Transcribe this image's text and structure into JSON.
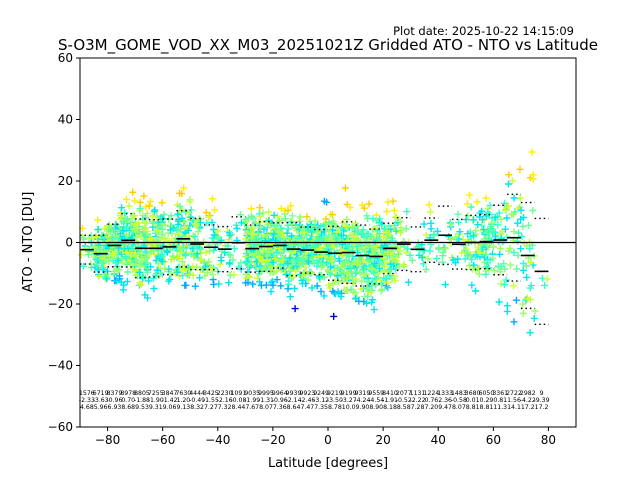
{
  "plot_date": "Plot date: 2025-10-22 14:15:09",
  "chart_data": {
    "type": "scatter",
    "title": "S-O3M_GOME_VOD_XX_M03_20251021Z Gridded ATO - NTO vs Latitude",
    "xlabel": "Latitude [degrees]",
    "ylabel": "ATO - NTO [DU]",
    "xlim": [
      -90,
      90
    ],
    "ylim": [
      -60,
      60
    ],
    "xticks": [
      -80,
      -60,
      -40,
      -20,
      0,
      20,
      40,
      60,
      80
    ],
    "yticks": [
      -60,
      -40,
      -20,
      0,
      20,
      40,
      60
    ],
    "zero_line": 0,
    "marker": "+",
    "point_colors": [
      "#0000dd",
      "#00aaff",
      "#00e5ee",
      "#33ffcc",
      "#66ff99",
      "#99ff66",
      "#ccff33",
      "#ffee00",
      "#ffcc00",
      "#ff9900"
    ],
    "bins": [
      {
        "lat": -87.5,
        "count": 1576,
        "mean": -2.33,
        "std": 4.68
      },
      {
        "lat": -82.5,
        "count": 6719,
        "mean": -3.63,
        "std": 5.96
      },
      {
        "lat": -77.5,
        "count": 8379,
        "mean": -0.96,
        "std": 6.93
      },
      {
        "lat": -72.5,
        "count": 8978,
        "mean": 0.7,
        "std": 8.68
      },
      {
        "lat": -67.5,
        "count": 8805,
        "mean": -1.88,
        "std": 9.53
      },
      {
        "lat": -62.5,
        "count": 7255,
        "mean": -1.9,
        "std": 9.31
      },
      {
        "lat": -57.5,
        "count": 3847,
        "mean": -1.42,
        "std": 9.06
      },
      {
        "lat": -52.5,
        "count": 7630,
        "mean": 1.2,
        "std": 9.13
      },
      {
        "lat": -47.5,
        "count": 4444,
        "mean": -0.49,
        "std": 8.32
      },
      {
        "lat": -42.5,
        "count": 3425,
        "mean": -1.55,
        "std": 7.27
      },
      {
        "lat": -37.5,
        "count": 2230,
        "mean": -2.16,
        "std": 7.32
      },
      {
        "lat": -32.5,
        "count": 1091,
        "mean": -0.08,
        "std": 8.44
      },
      {
        "lat": -27.5,
        "count": 9035,
        "mean": -1.99,
        "std": 7.67
      },
      {
        "lat": -22.5,
        "count": 9995,
        "mean": -1.31,
        "std": 8.07
      },
      {
        "lat": -17.5,
        "count": 9964,
        "mean": -0.96,
        "std": 7.36
      },
      {
        "lat": -12.5,
        "count": 9939,
        "mean": -2.14,
        "std": 8.64
      },
      {
        "lat": -7.5,
        "count": 9923,
        "mean": -2.46,
        "std": 7.47
      },
      {
        "lat": -2.5,
        "count": 9249,
        "mean": -3.12,
        "std": 7.35
      },
      {
        "lat": 2.5,
        "count": 9219,
        "mean": -3.5,
        "std": 8.78
      },
      {
        "lat": 7.5,
        "count": 9199,
        "mean": -3.27,
        "std": 10.0
      },
      {
        "lat": 12.5,
        "count": 9319,
        "mean": -4.24,
        "std": 9.9
      },
      {
        "lat": 17.5,
        "count": 9559,
        "mean": -4.54,
        "std": 8.9
      },
      {
        "lat": 22.5,
        "count": 8410,
        "mean": -1.91,
        "std": 8.18
      },
      {
        "lat": 27.5,
        "count": 2077,
        "mean": -0.52,
        "std": 8.58
      },
      {
        "lat": 32.5,
        "count": 1131,
        "mean": -2.22,
        "std": 7.28
      },
      {
        "lat": 37.5,
        "count": 1224,
        "mean": 0.76,
        "std": 7.2
      },
      {
        "lat": 42.5,
        "count": 1333,
        "mean": 2.36,
        "std": 9.47
      },
      {
        "lat": 47.5,
        "count": 1483,
        "mean": -0.58,
        "std": 8.07
      },
      {
        "lat": 52.5,
        "count": 3680,
        "mean": 0.01,
        "std": 8.81
      },
      {
        "lat": 57.5,
        "count": 6050,
        "mean": 0.29,
        "std": 8.81
      },
      {
        "lat": 62.5,
        "count": 3361,
        "mean": 0.81,
        "std": 11.3
      },
      {
        "lat": 67.5,
        "count": 2722,
        "mean": 1.56,
        "std": 14.1
      },
      {
        "lat": 72.5,
        "count": 2982,
        "mean": -4.22,
        "std": 17.2
      },
      {
        "lat": 77.5,
        "count": 9,
        "mean": -9.39,
        "std": 17.22
      }
    ]
  }
}
